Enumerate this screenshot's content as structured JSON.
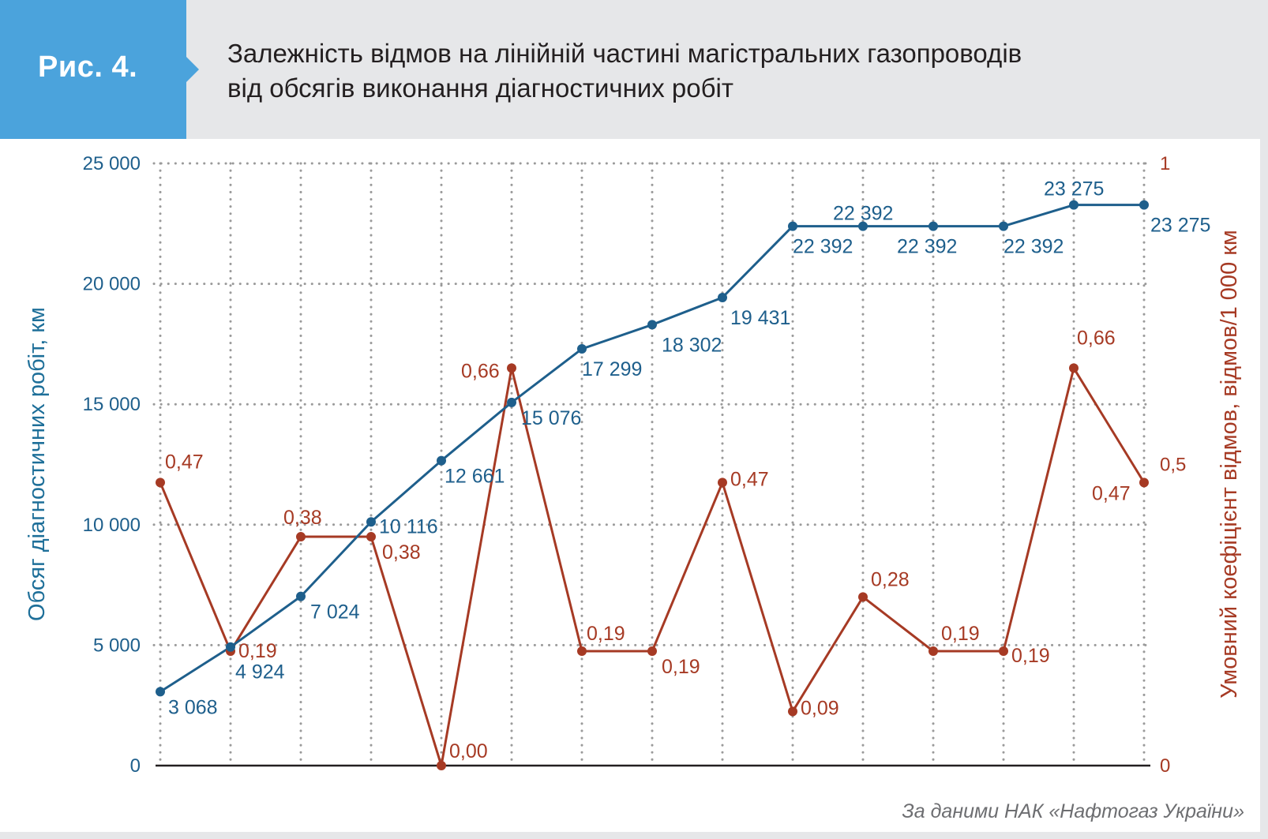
{
  "figure": {
    "label": "Рис. 4.",
    "title_line1": "Залежність відмов на лінійній частині магістральних газопроводів",
    "title_line2": "від обсягів виконання діагностичних робіт",
    "source": "За даними НАК «Нафтогаз України»"
  },
  "colors": {
    "badge": "#4ba3dc",
    "blue_series": "#1e5f8c",
    "red_series": "#a63a24",
    "grid": "#9a9a9a",
    "background_frame": "#e6e7e9"
  },
  "chart_data": {
    "type": "line",
    "x_count": 15,
    "grid": true,
    "y_left": {
      "label": "Обсяг діагностичних робіт, км",
      "range": [
        0,
        25000
      ],
      "ticks": [
        0,
        5000,
        10000,
        15000,
        20000,
        25000
      ],
      "tick_labels": [
        "0",
        "5 000",
        "10 000",
        "15 000",
        "20 000",
        "25 000"
      ]
    },
    "y_right": {
      "label": "Умовний коефіцієнт відмов, відмов/1 000 км",
      "range": [
        0,
        1
      ],
      "ticks": [
        0,
        0.5,
        1
      ],
      "tick_labels": [
        "0",
        "0,5",
        "1"
      ]
    },
    "series": [
      {
        "axis": "left",
        "color": "#1e5f8c",
        "values": [
          3068,
          4924,
          7024,
          10116,
          12661,
          15076,
          17299,
          18302,
          19431,
          22392,
          22392,
          22392,
          22392,
          23275,
          23275
        ],
        "labels": [
          "3 068",
          "4 924",
          "7 024",
          "10 116",
          "12 661",
          "15 076",
          "17 299",
          "18 302",
          "19 431",
          "22 392",
          "22 392",
          "22 392",
          "22 392",
          "23 275",
          "23 275"
        ]
      },
      {
        "axis": "right",
        "color": "#a63a24",
        "values": [
          0.47,
          0.19,
          0.38,
          0.38,
          0.0,
          0.66,
          0.19,
          0.19,
          0.47,
          0.09,
          0.28,
          0.19,
          0.19,
          0.66,
          0.47
        ],
        "labels": [
          "0,47",
          "0,19",
          "0,38",
          "0,38",
          "0,00",
          "0,66",
          "0,19",
          "0,19",
          "0,47",
          "0,09",
          "0,28",
          "0,19",
          "0,19",
          "0,66",
          "0,47"
        ]
      }
    ]
  }
}
